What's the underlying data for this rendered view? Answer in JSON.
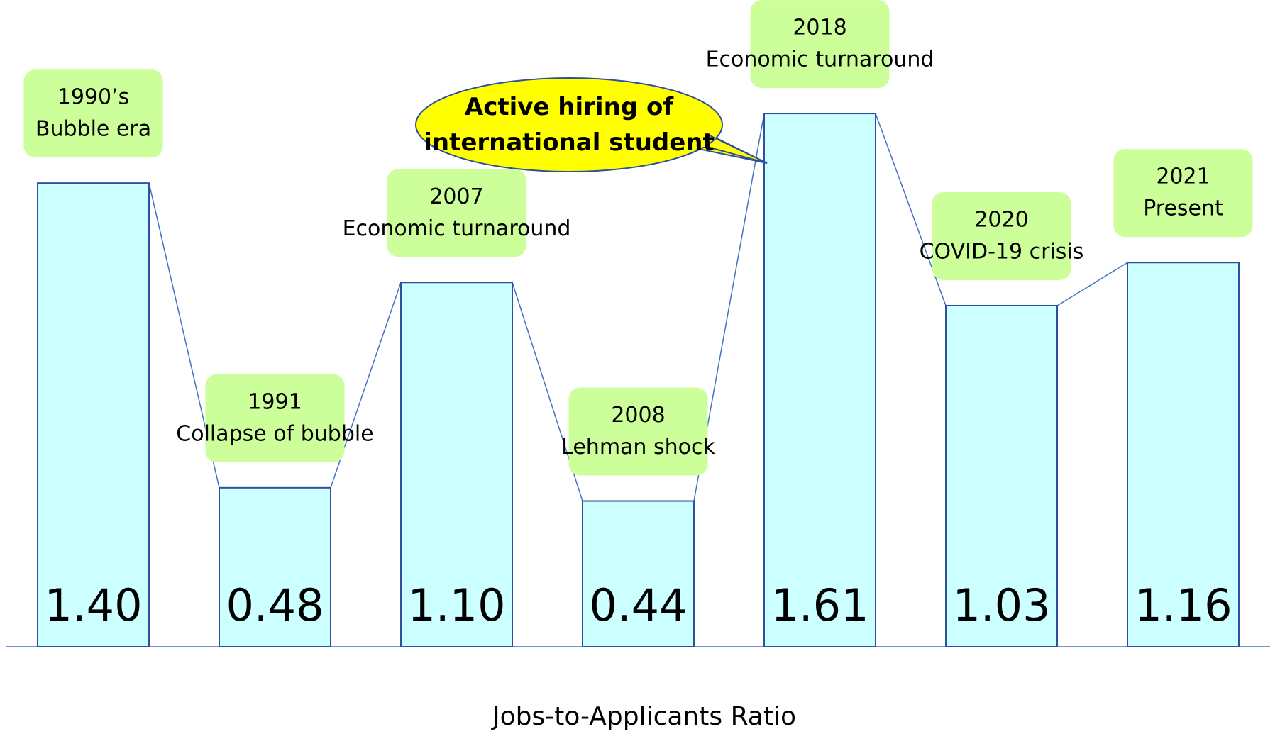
{
  "chart_data": {
    "type": "bar",
    "categories": [
      "1990’s",
      "1991",
      "2007",
      "2008",
      "2018",
      "2020",
      "2021"
    ],
    "events": [
      "Bubble era",
      "Collapse of bubble",
      "Economic turnaround",
      "Lehman shock",
      "Economic turnaround",
      "COVID-19 crisis",
      "Present"
    ],
    "values": [
      1.4,
      0.48,
      1.1,
      0.44,
      1.61,
      1.03,
      1.16
    ],
    "value_labels": [
      "1.40",
      "0.48",
      "1.10",
      "0.44",
      "1.61",
      "1.03",
      "1.16"
    ],
    "color": "#ccffff",
    "x_label": "Jobs-to-Applicants Ratio",
    "annotation": "Active hiring of international student",
    "ylim": [
      0,
      1.85
    ]
  }
}
